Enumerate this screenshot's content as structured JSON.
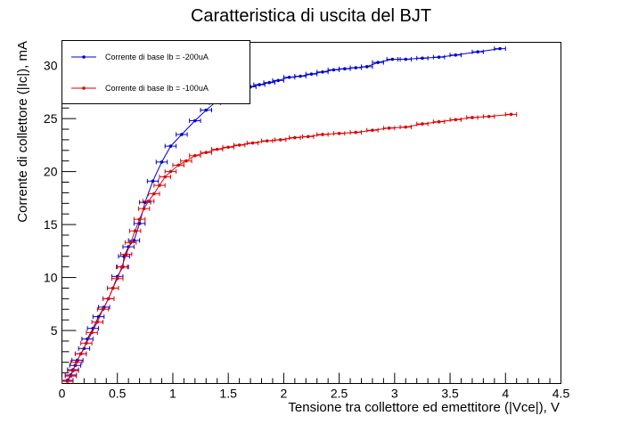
{
  "chart_data": {
    "type": "scatter",
    "title": "Caratteristica di uscita del BJT",
    "xlabel": "Tensione tra collettore ed emettitore (|Vce|), V",
    "ylabel": "Corrente di collettore (|Ic|), mA",
    "xlim": [
      0,
      4.5
    ],
    "ylim": [
      0,
      32.2
    ],
    "x_ticks": [
      "0",
      "0.5",
      "1",
      "1.5",
      "2",
      "2.5",
      "3",
      "3.5",
      "4",
      "4.5"
    ],
    "y_ticks": [
      "5",
      "10",
      "15",
      "20",
      "25",
      "30"
    ],
    "grid": false,
    "legend_position": "top-left",
    "series": [
      {
        "name": "Corrente di base Ib = -200uA",
        "color": "#0000cc",
        "points": [
          [
            0.05,
            0.3
          ],
          [
            0.08,
            0.8
          ],
          [
            0.1,
            1.3
          ],
          [
            0.12,
            1.7
          ],
          [
            0.14,
            2.2
          ],
          [
            0.17,
            2.8
          ],
          [
            0.2,
            3.3
          ],
          [
            0.23,
            4.2
          ],
          [
            0.28,
            5.2
          ],
          [
            0.33,
            6.3
          ],
          [
            0.38,
            7.2
          ],
          [
            0.42,
            8.0
          ],
          [
            0.46,
            9.0
          ],
          [
            0.5,
            10.1
          ],
          [
            0.55,
            11.0
          ],
          [
            0.56,
            12.0
          ],
          [
            0.6,
            12.9
          ],
          [
            0.65,
            13.5
          ],
          [
            0.7,
            15.1
          ],
          [
            0.75,
            17.1
          ],
          [
            0.82,
            19.1
          ],
          [
            0.9,
            20.9
          ],
          [
            0.98,
            22.4
          ],
          [
            1.08,
            23.5
          ],
          [
            1.2,
            24.8
          ],
          [
            1.3,
            25.8
          ],
          [
            1.38,
            26.5
          ],
          [
            1.45,
            26.8
          ],
          [
            1.52,
            27.3
          ],
          [
            1.62,
            27.7
          ],
          [
            1.7,
            28.0
          ],
          [
            1.78,
            28.2
          ],
          [
            1.87,
            28.4
          ],
          [
            1.95,
            28.6
          ],
          [
            2.05,
            28.9
          ],
          [
            2.15,
            29.0
          ],
          [
            2.25,
            29.2
          ],
          [
            2.35,
            29.4
          ],
          [
            2.45,
            29.6
          ],
          [
            2.55,
            29.7
          ],
          [
            2.65,
            29.8
          ],
          [
            2.75,
            29.9
          ],
          [
            2.85,
            30.3
          ],
          [
            2.98,
            30.6
          ],
          [
            3.1,
            30.6
          ],
          [
            3.25,
            30.7
          ],
          [
            3.4,
            30.8
          ],
          [
            3.55,
            31.0
          ],
          [
            3.75,
            31.3
          ],
          [
            3.95,
            31.6
          ]
        ],
        "x_errors": 0.05
      },
      {
        "name": "Corrente di base Ib = -100uA",
        "color": "#dd0000",
        "points": [
          [
            0.05,
            0.2
          ],
          [
            0.08,
            0.7
          ],
          [
            0.1,
            1.2
          ],
          [
            0.13,
            2.0
          ],
          [
            0.17,
            2.8
          ],
          [
            0.22,
            3.8
          ],
          [
            0.27,
            4.8
          ],
          [
            0.32,
            5.8
          ],
          [
            0.37,
            7.0
          ],
          [
            0.42,
            8.0
          ],
          [
            0.46,
            9.0
          ],
          [
            0.5,
            9.9
          ],
          [
            0.54,
            11.0
          ],
          [
            0.58,
            12.2
          ],
          [
            0.62,
            13.3
          ],
          [
            0.66,
            14.4
          ],
          [
            0.7,
            15.5
          ],
          [
            0.74,
            16.5
          ],
          [
            0.78,
            17.2
          ],
          [
            0.83,
            17.9
          ],
          [
            0.88,
            18.7
          ],
          [
            0.93,
            19.5
          ],
          [
            0.98,
            20.0
          ],
          [
            1.05,
            20.6
          ],
          [
            1.12,
            21.0
          ],
          [
            1.2,
            21.5
          ],
          [
            1.3,
            21.8
          ],
          [
            1.4,
            22.1
          ],
          [
            1.5,
            22.3
          ],
          [
            1.6,
            22.5
          ],
          [
            1.72,
            22.7
          ],
          [
            1.85,
            22.9
          ],
          [
            1.97,
            23.0
          ],
          [
            2.1,
            23.2
          ],
          [
            2.22,
            23.3
          ],
          [
            2.35,
            23.5
          ],
          [
            2.5,
            23.6
          ],
          [
            2.65,
            23.7
          ],
          [
            2.8,
            23.9
          ],
          [
            2.95,
            24.1
          ],
          [
            3.1,
            24.2
          ],
          [
            3.25,
            24.5
          ],
          [
            3.4,
            24.7
          ],
          [
            3.55,
            24.9
          ],
          [
            3.7,
            25.1
          ],
          [
            3.85,
            25.2
          ],
          [
            4.05,
            25.4
          ]
        ],
        "x_errors": 0.05
      }
    ]
  }
}
